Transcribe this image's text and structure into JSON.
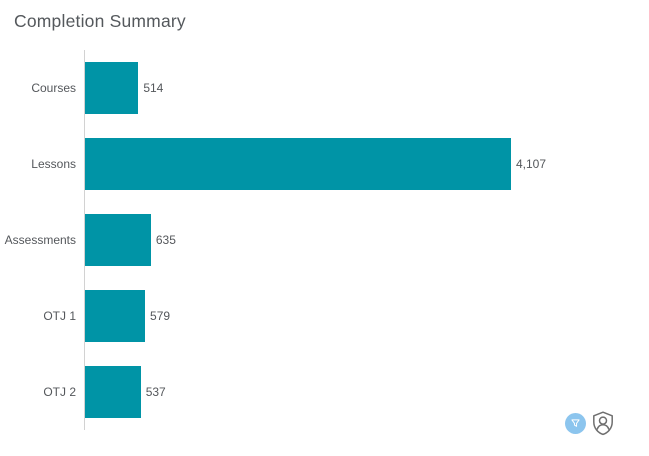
{
  "title": "Completion Summary",
  "chart_data": {
    "type": "bar",
    "orientation": "horizontal",
    "title": "Completion Summary",
    "categories": [
      "Courses",
      "Lessons",
      "Assessments",
      "OTJ 1",
      "OTJ 2"
    ],
    "values": [
      514,
      4107,
      635,
      579,
      537
    ],
    "value_labels": [
      "514",
      "4,107",
      "635",
      "579",
      "537"
    ],
    "xlim": [
      0,
      4107
    ],
    "grid": "off",
    "legend": "none",
    "bar_color": "#0094a6",
    "axis_color": "#d2d2d2",
    "label_color": "#54575b"
  },
  "icons": {
    "filter_button": {
      "name": "filter-icon",
      "background": "#8cc5ee",
      "glyph_color": "#ffffff"
    },
    "shield_user_button": {
      "name": "shield-user-icon",
      "color": "#6f6f6f"
    }
  }
}
